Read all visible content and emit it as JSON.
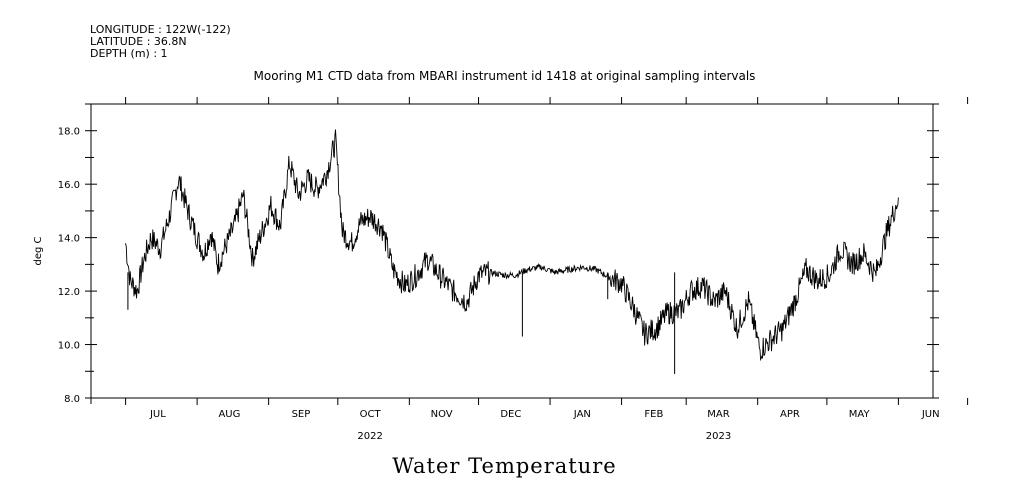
{
  "header": {
    "longitude": "LONGITUDE : 122W(-122)",
    "latitude": "LATITUDE : 36.8N",
    "depth": "DEPTH (m) : 1"
  },
  "subtitle": "Mooring M1 CTD data from MBARI instrument id 1418 at original sampling intervals",
  "title": "Water Temperature",
  "chart_data": {
    "type": "line",
    "title": "Water Temperature",
    "subtitle": "Mooring M1 CTD data from MBARI instrument id 1418 at original sampling intervals",
    "ylabel": "deg C",
    "ylim": [
      8.0,
      19.0
    ],
    "y_ticks": [
      "8.0",
      "10.0",
      "12.0",
      "14.0",
      "16.0",
      "18.0"
    ],
    "x_ticks": [
      "JUL",
      "AUG",
      "SEP",
      "OCT",
      "NOV",
      "DEC",
      "JAN",
      "FEB",
      "MAR",
      "APR",
      "MAY",
      "JUN"
    ],
    "x_years": [
      {
        "label": "2022",
        "month": "OCT"
      },
      {
        "label": "2023",
        "month": "MAR"
      }
    ],
    "grid": false,
    "series": [
      {
        "x": [
          "2022-07-01",
          "2022-07-03",
          "2022-07-06",
          "2022-07-09",
          "2022-07-12",
          "2022-07-16",
          "2022-07-20",
          "2022-07-24",
          "2022-07-28",
          "2022-08-01",
          "2022-08-04",
          "2022-08-07",
          "2022-08-10",
          "2022-08-13",
          "2022-08-17",
          "2022-08-21",
          "2022-08-25",
          "2022-08-29",
          "2022-09-02",
          "2022-09-06",
          "2022-09-10",
          "2022-09-14",
          "2022-09-18",
          "2022-09-22",
          "2022-09-26",
          "2022-09-30",
          "2022-10-03",
          "2022-10-07",
          "2022-10-11",
          "2022-10-15",
          "2022-10-20",
          "2022-10-25",
          "2022-10-30",
          "2022-11-04",
          "2022-11-09",
          "2022-11-14",
          "2022-11-20",
          "2022-11-26",
          "2022-12-01",
          "2022-12-06",
          "2022-12-12",
          "2022-12-17",
          "2022-12-22",
          "2022-12-28",
          "2023-01-03",
          "2023-01-09",
          "2023-01-15",
          "2023-01-21",
          "2023-01-27",
          "2023-02-01",
          "2023-02-06",
          "2023-02-11",
          "2023-02-16",
          "2023-02-21",
          "2023-02-26",
          "2023-03-03",
          "2023-03-08",
          "2023-03-13",
          "2023-03-18",
          "2023-03-23",
          "2023-03-28",
          "2023-04-02",
          "2023-04-07",
          "2023-04-12",
          "2023-04-17",
          "2023-04-22",
          "2023-04-27",
          "2023-05-02",
          "2023-05-07",
          "2023-05-12",
          "2023-05-17",
          "2023-05-22",
          "2023-05-27",
          "2023-06-01"
        ],
        "values": [
          13.8,
          12.4,
          12.0,
          13.2,
          14.0,
          13.6,
          14.8,
          16.2,
          15.0,
          14.0,
          13.4,
          14.2,
          13.0,
          13.6,
          14.4,
          15.6,
          13.2,
          14.2,
          15.2,
          14.4,
          16.8,
          15.6,
          16.2,
          15.8,
          16.4,
          17.6,
          14.2,
          13.8,
          14.6,
          14.8,
          14.4,
          12.8,
          12.2,
          12.6,
          13.2,
          12.6,
          12.0,
          11.6,
          12.6,
          12.7,
          12.6,
          12.6,
          12.8,
          12.9,
          12.7,
          12.8,
          12.9,
          12.8,
          12.5,
          12.3,
          11.4,
          10.4,
          10.6,
          11.2,
          11.2,
          12.0,
          12.2,
          11.6,
          12.0,
          10.6,
          11.6,
          9.8,
          10.2,
          10.6,
          11.6,
          12.8,
          12.4,
          12.6,
          13.6,
          13.0,
          13.4,
          12.6,
          14.2,
          15.5
        ]
      }
    ],
    "annotations": [
      {
        "x": "2022-12-20",
        "y": 10.3
      },
      {
        "x": "2023-01-26",
        "y": 11.7
      },
      {
        "x": "2023-02-24",
        "y": 8.9
      },
      {
        "x": "2022-07-02",
        "y": 11.3
      }
    ]
  }
}
